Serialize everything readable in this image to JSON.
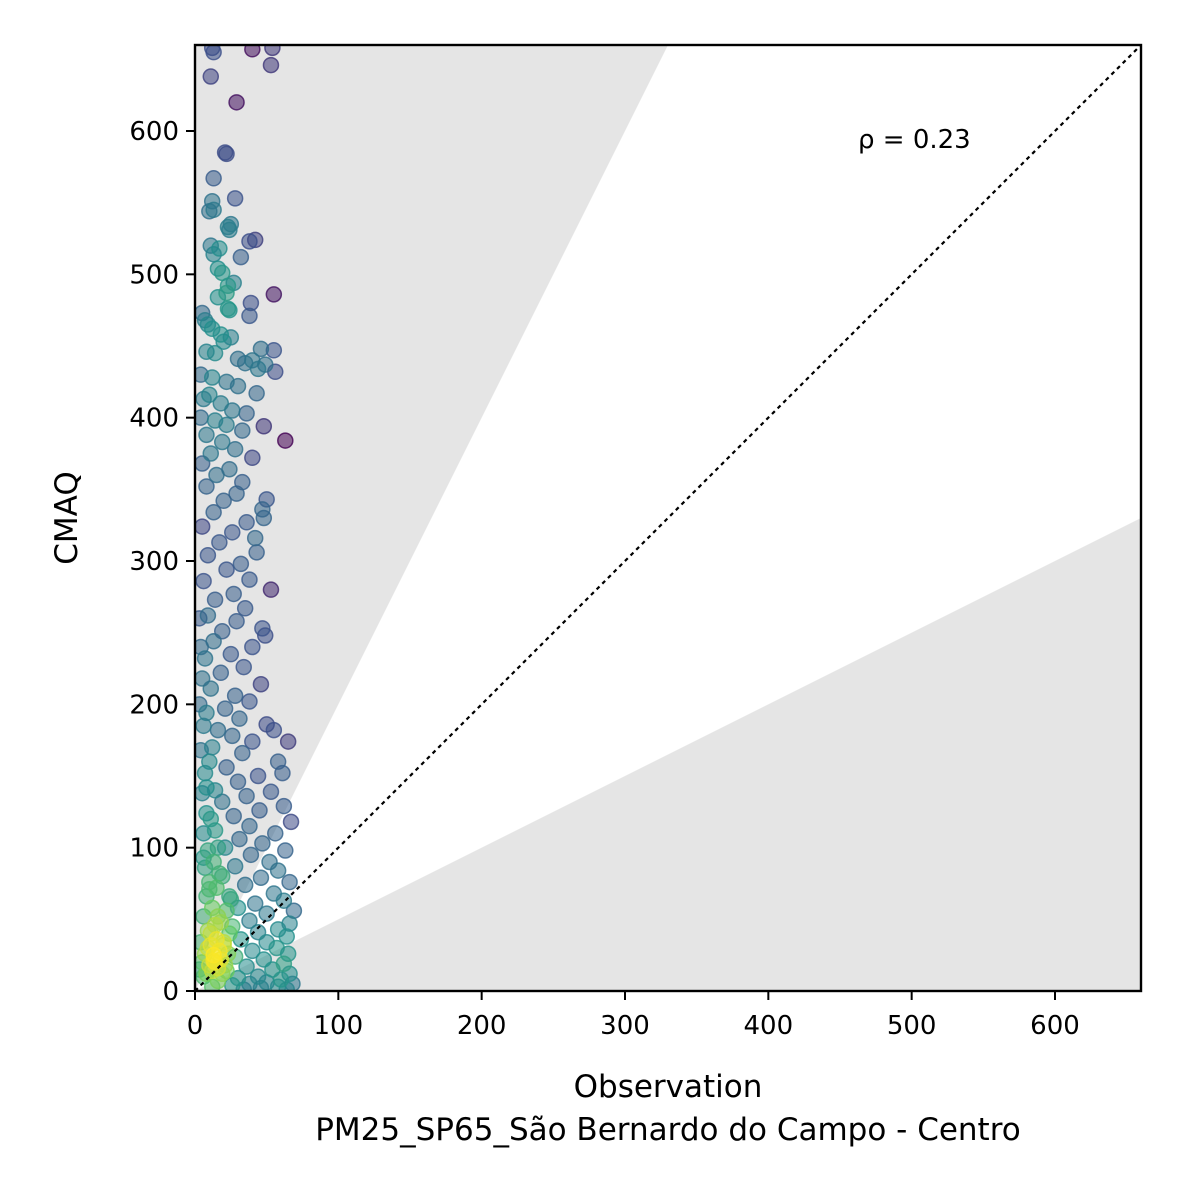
{
  "chart_data": {
    "type": "scatter",
    "xlabel": "Observation",
    "xlabel_sub": "PM25_SP65_São Bernardo do Campo - Centro",
    "ylabel": "CMAQ",
    "annotation": "ρ = 0.23",
    "xlim": [
      0,
      660
    ],
    "ylim": [
      0,
      660
    ],
    "xticks": [
      0,
      100,
      200,
      300,
      400,
      500,
      600
    ],
    "yticks": [
      0,
      100,
      200,
      300,
      400,
      500,
      600
    ],
    "grid": false,
    "reference_line": {
      "style": "dotted",
      "slope": 1,
      "color": "#000000"
    },
    "shaded_regions": [
      {
        "description": "y > 2x",
        "upper_slope": null,
        "lower_slope": 2,
        "color": "#e5e5e5"
      },
      {
        "description": "y < 0.5x",
        "upper_slope": 0.5,
        "lower_slope": 0,
        "color": "#e5e5e5"
      }
    ],
    "colormap": [
      "#440154",
      "#3b528b",
      "#21918c",
      "#5ec962",
      "#fde725"
    ],
    "color_encoding": "point density",
    "marker_alpha": 0.55,
    "points": [
      [
        12,
        658
      ],
      [
        40,
        657
      ],
      [
        13,
        655
      ],
      [
        54,
        658
      ],
      [
        53,
        646
      ],
      [
        11,
        638
      ],
      [
        29,
        620
      ],
      [
        21,
        585
      ],
      [
        22,
        584
      ],
      [
        13,
        567
      ],
      [
        28,
        553
      ],
      [
        12,
        551
      ],
      [
        13,
        545
      ],
      [
        10,
        544
      ],
      [
        25,
        535
      ],
      [
        23,
        533
      ],
      [
        24,
        531
      ],
      [
        42,
        524
      ],
      [
        38,
        523
      ],
      [
        11,
        520
      ],
      [
        17,
        518
      ],
      [
        13,
        514
      ],
      [
        32,
        512
      ],
      [
        16,
        504
      ],
      [
        19,
        501
      ],
      [
        27,
        494
      ],
      [
        23,
        492
      ],
      [
        22,
        487
      ],
      [
        16,
        484
      ],
      [
        55,
        486
      ],
      [
        39,
        480
      ],
      [
        23,
        476
      ],
      [
        24,
        475
      ],
      [
        5,
        473
      ],
      [
        38,
        471
      ],
      [
        7,
        468
      ],
      [
        9,
        465
      ],
      [
        12,
        462
      ],
      [
        18,
        458
      ],
      [
        25,
        456
      ],
      [
        20,
        453
      ],
      [
        46,
        448
      ],
      [
        55,
        447
      ],
      [
        8,
        446
      ],
      [
        14,
        445
      ],
      [
        30,
        441
      ],
      [
        40,
        440
      ],
      [
        35,
        438
      ],
      [
        49,
        437
      ],
      [
        44,
        434
      ],
      [
        56,
        432
      ],
      [
        4,
        430
      ],
      [
        12,
        428
      ],
      [
        22,
        425
      ],
      [
        30,
        422
      ],
      [
        43,
        417
      ],
      [
        10,
        416
      ],
      [
        6,
        413
      ],
      [
        18,
        410
      ],
      [
        26,
        405
      ],
      [
        36,
        403
      ],
      [
        4,
        400
      ],
      [
        14,
        398
      ],
      [
        22,
        395
      ],
      [
        48,
        394
      ],
      [
        33,
        391
      ],
      [
        8,
        388
      ],
      [
        63,
        384
      ],
      [
        19,
        383
      ],
      [
        28,
        378
      ],
      [
        11,
        375
      ],
      [
        40,
        372
      ],
      [
        5,
        368
      ],
      [
        24,
        364
      ],
      [
        15,
        360
      ],
      [
        33,
        355
      ],
      [
        8,
        352
      ],
      [
        29,
        347
      ],
      [
        50,
        343
      ],
      [
        20,
        342
      ],
      [
        47,
        336
      ],
      [
        13,
        334
      ],
      [
        48,
        330
      ],
      [
        36,
        327
      ],
      [
        5,
        324
      ],
      [
        26,
        320
      ],
      [
        42,
        316
      ],
      [
        17,
        313
      ],
      [
        43,
        306
      ],
      [
        9,
        304
      ],
      [
        32,
        298
      ],
      [
        22,
        294
      ],
      [
        38,
        287
      ],
      [
        6,
        286
      ],
      [
        53,
        280
      ],
      [
        27,
        277
      ],
      [
        14,
        273
      ],
      [
        35,
        267
      ],
      [
        9,
        262
      ],
      [
        29,
        258
      ],
      [
        47,
        253
      ],
      [
        19,
        251
      ],
      [
        49,
        248
      ],
      [
        13,
        244
      ],
      [
        40,
        240
      ],
      [
        25,
        235
      ],
      [
        7,
        232
      ],
      [
        34,
        226
      ],
      [
        18,
        222
      ],
      [
        46,
        214
      ],
      [
        11,
        211
      ],
      [
        28,
        206
      ],
      [
        38,
        202
      ],
      [
        21,
        197
      ],
      [
        8,
        194
      ],
      [
        31,
        190
      ],
      [
        50,
        186
      ],
      [
        16,
        182
      ],
      [
        55,
        182
      ],
      [
        26,
        178
      ],
      [
        65,
        174
      ],
      [
        40,
        174
      ],
      [
        12,
        170
      ],
      [
        33,
        166
      ],
      [
        58,
        160
      ],
      [
        22,
        156
      ],
      [
        61,
        152
      ],
      [
        44,
        150
      ],
      [
        30,
        146
      ],
      [
        8,
        142
      ],
      [
        53,
        139
      ],
      [
        36,
        136
      ],
      [
        19,
        132
      ],
      [
        62,
        129
      ],
      [
        45,
        126
      ],
      [
        27,
        122
      ],
      [
        67,
        118
      ],
      [
        38,
        115
      ],
      [
        14,
        112
      ],
      [
        56,
        110
      ],
      [
        31,
        106
      ],
      [
        47,
        103
      ],
      [
        21,
        100
      ],
      [
        63,
        98
      ],
      [
        39,
        95
      ],
      [
        6,
        93
      ],
      [
        52,
        90
      ],
      [
        28,
        87
      ],
      [
        58,
        84
      ],
      [
        17,
        82
      ],
      [
        46,
        79
      ],
      [
        66,
        76
      ],
      [
        35,
        74
      ],
      [
        10,
        71
      ],
      [
        55,
        68
      ],
      [
        24,
        66
      ],
      [
        62,
        63
      ],
      [
        42,
        61
      ],
      [
        30,
        58
      ],
      [
        69,
        56
      ],
      [
        50,
        54
      ],
      [
        16,
        52
      ],
      [
        38,
        49
      ],
      [
        66,
        47
      ],
      [
        26,
        45
      ],
      [
        58,
        43
      ],
      [
        44,
        41
      ],
      [
        11,
        40
      ],
      [
        64,
        38
      ],
      [
        32,
        36
      ],
      [
        50,
        34
      ],
      [
        20,
        32
      ],
      [
        57,
        30
      ],
      [
        40,
        28
      ],
      [
        65,
        26
      ],
      [
        28,
        24
      ],
      [
        48,
        22
      ],
      [
        13,
        21
      ],
      [
        62,
        19
      ],
      [
        36,
        17
      ],
      [
        54,
        15
      ],
      [
        22,
        14
      ],
      [
        66,
        12
      ],
      [
        44,
        10
      ],
      [
        30,
        9
      ],
      [
        60,
        8
      ],
      [
        16,
        7
      ],
      [
        50,
        6
      ],
      [
        38,
        5
      ],
      [
        68,
        5
      ],
      [
        26,
        4
      ],
      [
        58,
        3
      ],
      [
        12,
        3
      ],
      [
        46,
        2
      ],
      [
        64,
        1
      ],
      [
        34,
        1
      ],
      [
        3,
        260
      ],
      [
        4,
        240
      ],
      [
        5,
        218
      ],
      [
        3,
        200
      ],
      [
        6,
        185
      ],
      [
        4,
        168
      ],
      [
        7,
        152
      ],
      [
        5,
        138
      ],
      [
        8,
        124
      ],
      [
        6,
        110
      ],
      [
        9,
        98
      ],
      [
        7,
        86
      ],
      [
        10,
        76
      ],
      [
        8,
        66
      ],
      [
        12,
        58
      ],
      [
        6,
        52
      ],
      [
        14,
        46
      ],
      [
        9,
        42
      ],
      [
        15,
        36
      ],
      [
        11,
        32
      ],
      [
        17,
        28
      ],
      [
        13,
        25
      ],
      [
        18,
        22
      ],
      [
        14,
        20
      ],
      [
        10,
        18
      ],
      [
        16,
        16
      ],
      [
        12,
        14
      ],
      [
        8,
        12
      ],
      [
        5,
        20
      ],
      [
        7,
        26
      ],
      [
        9,
        30
      ],
      [
        4,
        34
      ],
      [
        3,
        15
      ],
      [
        6,
        10
      ],
      [
        19,
        12
      ],
      [
        21,
        18
      ],
      [
        23,
        26
      ],
      [
        20,
        34
      ],
      [
        24,
        40
      ],
      [
        18,
        48
      ],
      [
        22,
        56
      ],
      [
        25,
        64
      ],
      [
        15,
        72
      ],
      [
        19,
        80
      ],
      [
        13,
        90
      ],
      [
        16,
        100
      ],
      [
        11,
        120
      ],
      [
        14,
        140
      ],
      [
        10,
        160
      ]
    ]
  }
}
